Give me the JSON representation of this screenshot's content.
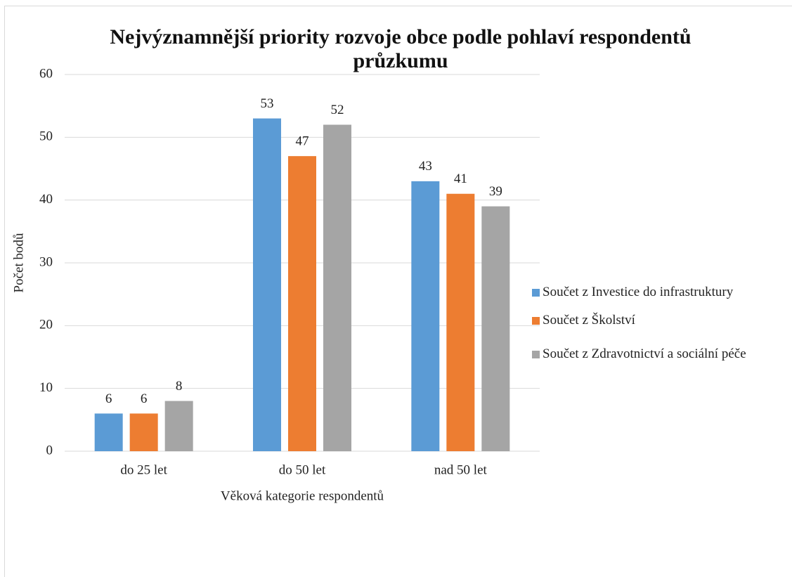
{
  "chart_data": {
    "type": "bar",
    "title": "Nejvýznamnější priority rozvoje obce podle pohlaví respondentů průzkumu",
    "x_label": "Věková kategorie respondentů",
    "y_label": "Počet bodů",
    "categories": [
      "do 25 let",
      "do 50 let",
      "nad 50 let"
    ],
    "series": [
      {
        "name": "Součet z Investice do infrastruktury",
        "color": "#5b9bd5",
        "values": [
          6,
          53,
          43
        ]
      },
      {
        "name": "Součet z Školství",
        "color": "#ed7d31",
        "values": [
          6,
          47,
          41
        ]
      },
      {
        "name": "Součet z Zdravotnictví a sociální péče",
        "color": "#a5a5a5",
        "values": [
          8,
          52,
          39
        ]
      }
    ],
    "ylim": [
      0,
      60
    ],
    "yticks": [
      0,
      10,
      20,
      30,
      40,
      50,
      60
    ],
    "grid": true,
    "legend": "right"
  }
}
